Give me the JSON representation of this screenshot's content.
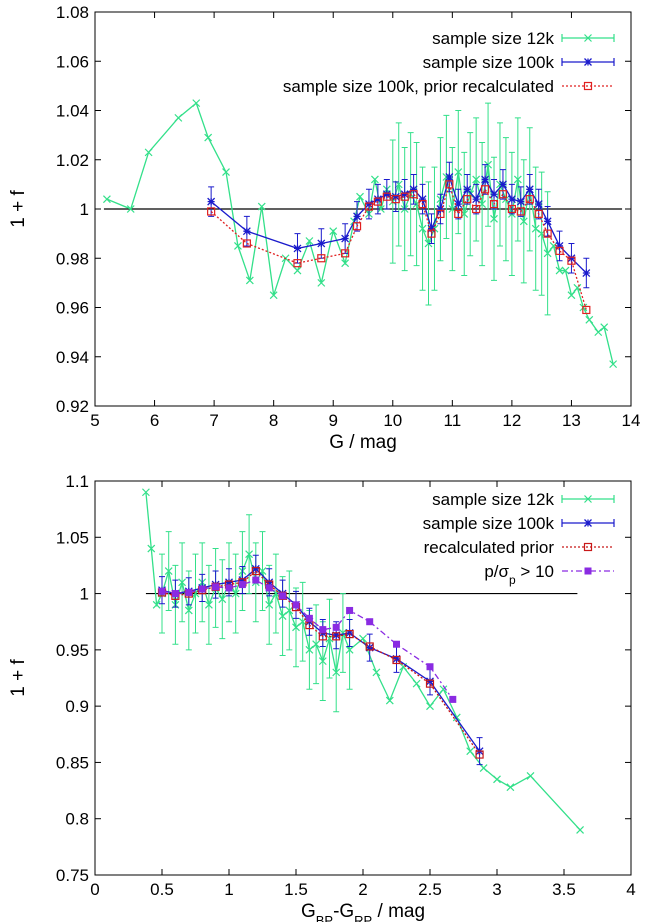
{
  "chart_data": [
    {
      "type": "line",
      "xlabel": "G / mag",
      "ylabel": "1 + f",
      "xlim": [
        5,
        14
      ],
      "ylim": [
        0.92,
        1.08
      ],
      "xticks": [
        "5",
        "6",
        "7",
        "8",
        "9",
        "10",
        "11",
        "12",
        "13",
        "14"
      ],
      "yticks": [
        "0.92",
        "0.94",
        "0.96",
        "0.98",
        "1",
        "1.02",
        "1.04",
        "1.06",
        "1.08"
      ],
      "reference_line": 1,
      "legend_position": "top-right",
      "series": [
        {
          "name": "sample size 12k",
          "color": "#33e08a",
          "marker": "x",
          "error_range": [
            10.0,
            12.6
          ],
          "error_halfwidth": 0.025,
          "x": [
            5.2,
            5.6,
            5.9,
            6.4,
            6.7,
            6.9,
            7.2,
            7.4,
            7.6,
            7.8,
            8.0,
            8.2,
            8.4,
            8.6,
            8.8,
            9.0,
            9.2,
            9.35,
            9.45,
            9.6,
            9.7,
            9.8,
            9.9,
            10.0,
            10.1,
            10.2,
            10.3,
            10.4,
            10.5,
            10.6,
            10.7,
            10.8,
            10.9,
            11.0,
            11.1,
            11.2,
            11.3,
            11.4,
            11.5,
            11.6,
            11.7,
            11.8,
            11.9,
            12.0,
            12.1,
            12.2,
            12.3,
            12.4,
            12.5,
            12.6,
            12.7,
            12.8,
            12.9,
            13.0,
            13.1,
            13.2,
            13.3,
            13.45,
            13.55,
            13.7
          ],
          "values": [
            1.004,
            1.0,
            1.023,
            1.037,
            1.043,
            1.029,
            1.015,
            0.985,
            0.971,
            1.001,
            0.965,
            0.98,
            0.975,
            0.987,
            0.97,
            0.991,
            0.978,
            0.995,
            1.005,
            0.998,
            1.012,
            1.0,
            1.008,
            1.003,
            1.01,
            1.0,
            1.006,
            1.002,
            0.992,
            0.986,
            0.992,
            1.004,
            1.013,
            1.0,
            1.015,
            0.998,
            1.006,
            1.012,
            1.002,
            1.018,
            0.996,
            1.01,
            1.004,
            0.998,
            1.012,
            0.995,
            1.008,
            0.992,
            0.99,
            0.982,
            0.985,
            0.975,
            0.975,
            0.965,
            0.968,
            0.96,
            0.955,
            0.95,
            0.952,
            0.937
          ]
        },
        {
          "name": "sample size 100k",
          "color": "#1b1bcc",
          "marker": "asterisk",
          "error_halfwidth": 0.006,
          "x": [
            6.95,
            7.55,
            8.4,
            8.8,
            9.2,
            9.4,
            9.6,
            9.75,
            9.9,
            10.05,
            10.2,
            10.35,
            10.5,
            10.65,
            10.8,
            10.95,
            11.1,
            11.25,
            11.4,
            11.55,
            11.7,
            11.85,
            12.0,
            12.15,
            12.3,
            12.45,
            12.6,
            12.8,
            13.0,
            13.25
          ],
          "values": [
            1.003,
            0.991,
            0.984,
            0.986,
            0.988,
            0.997,
            1.002,
            1.004,
            1.006,
            1.005,
            1.006,
            1.008,
            1.004,
            0.992,
            1.0,
            1.013,
            1.002,
            1.008,
            1.004,
            1.012,
            1.006,
            1.01,
            1.004,
            1.003,
            1.008,
            1.002,
            0.995,
            0.985,
            0.98,
            0.974
          ]
        },
        {
          "name": "sample size 100k, prior recalculated",
          "color": "#e02020",
          "marker": "square",
          "x": [
            6.95,
            7.55,
            8.4,
            8.8,
            9.2,
            9.4,
            9.6,
            9.75,
            9.9,
            10.05,
            10.2,
            10.35,
            10.5,
            10.65,
            10.8,
            10.95,
            11.1,
            11.25,
            11.4,
            11.55,
            11.7,
            11.85,
            12.0,
            12.15,
            12.3,
            12.45,
            12.6,
            12.8,
            13.0,
            13.25
          ],
          "values": [
            0.999,
            0.986,
            0.978,
            0.98,
            0.982,
            0.993,
            1.001,
            1.003,
            1.005,
            1.004,
            1.005,
            1.006,
            1.002,
            0.99,
            0.998,
            1.01,
            0.998,
            1.004,
            1.0,
            1.008,
            1.002,
            1.006,
            1.0,
            0.999,
            1.004,
            0.998,
            0.99,
            0.983,
            0.979,
            0.959
          ]
        }
      ]
    },
    {
      "type": "line",
      "xlabel": "G_BP-G_RP / mag",
      "ylabel": "1 + f",
      "xlim": [
        0,
        4
      ],
      "ylim": [
        0.75,
        1.1
      ],
      "xticks": [
        "0",
        "0.5",
        "1",
        "1.5",
        "2",
        "2.5",
        "3",
        "3.5",
        "4"
      ],
      "yticks": [
        "0.75",
        "0.8",
        "0.85",
        "0.9",
        "0.95",
        "1",
        "1.05",
        "1.1"
      ],
      "reference_line": 1,
      "legend_position": "top-right",
      "series": [
        {
          "name": "sample size 12k",
          "color": "#33e08a",
          "marker": "x",
          "error_range": [
            0.5,
            1.9
          ],
          "error_halfwidth": 0.035,
          "x": [
            0.38,
            0.42,
            0.46,
            0.5,
            0.55,
            0.6,
            0.65,
            0.7,
            0.75,
            0.8,
            0.85,
            0.9,
            0.95,
            1.0,
            1.05,
            1.1,
            1.15,
            1.2,
            1.25,
            1.3,
            1.35,
            1.4,
            1.45,
            1.5,
            1.55,
            1.6,
            1.65,
            1.7,
            1.75,
            1.8,
            1.85,
            1.9,
            2.0,
            2.1,
            2.2,
            2.3,
            2.4,
            2.5,
            2.6,
            2.7,
            2.8,
            2.9,
            3.0,
            3.1,
            3.25,
            3.62
          ],
          "values": [
            1.09,
            1.04,
            0.99,
            1.0,
            1.02,
            0.99,
            1.01,
            0.985,
            1.0,
            1.01,
            0.99,
            1.005,
            0.995,
            1.01,
            1.0,
            1.02,
            1.035,
            1.01,
            1.02,
            0.99,
            1.0,
            0.98,
            0.985,
            0.97,
            0.975,
            0.95,
            0.955,
            0.94,
            0.96,
            0.93,
            0.965,
            0.95,
            0.96,
            0.93,
            0.905,
            0.935,
            0.92,
            0.9,
            0.915,
            0.89,
            0.86,
            0.845,
            0.835,
            0.828,
            0.838,
            0.79
          ]
        },
        {
          "name": "sample size 100k",
          "color": "#1b1bcc",
          "marker": "asterisk",
          "error_halfwidth": 0.012,
          "x": [
            0.5,
            0.6,
            0.7,
            0.8,
            0.9,
            1.0,
            1.1,
            1.2,
            1.3,
            1.4,
            1.5,
            1.6,
            1.7,
            1.8,
            1.9,
            2.05,
            2.25,
            2.5,
            2.87
          ],
          "values": [
            1.003,
            1.0,
            1.002,
            1.005,
            1.008,
            1.01,
            1.012,
            1.022,
            1.01,
            1.0,
            0.99,
            0.975,
            0.965,
            0.963,
            0.965,
            0.952,
            0.942,
            0.922,
            0.86
          ]
        },
        {
          "name": "recalculated prior",
          "color": "#c81818",
          "marker": "square",
          "x": [
            0.5,
            0.6,
            0.7,
            0.8,
            0.9,
            1.0,
            1.1,
            1.2,
            1.3,
            1.4,
            1.5,
            1.6,
            1.7,
            1.8,
            1.9,
            2.05,
            2.25,
            2.5,
            2.87
          ],
          "values": [
            1.001,
            0.998,
            1.0,
            1.003,
            1.006,
            1.008,
            1.01,
            1.02,
            1.008,
            0.998,
            0.988,
            0.972,
            0.962,
            0.962,
            0.964,
            0.953,
            0.941,
            0.92,
            0.857
          ]
        },
        {
          "name": "p/σ_p > 10",
          "color": "#8a2be2",
          "marker": "filled-square",
          "x": [
            0.5,
            0.6,
            0.7,
            0.8,
            0.9,
            1.0,
            1.1,
            1.2,
            1.3,
            1.4,
            1.5,
            1.6,
            1.7,
            1.8,
            1.9,
            2.05,
            2.25,
            2.5,
            2.67
          ],
          "values": [
            1.002,
            1.0,
            1.001,
            1.004,
            1.006,
            1.005,
            1.008,
            1.012,
            1.005,
            0.998,
            0.99,
            0.978,
            0.968,
            0.97,
            0.985,
            0.975,
            0.955,
            0.935,
            0.906
          ]
        }
      ]
    }
  ]
}
